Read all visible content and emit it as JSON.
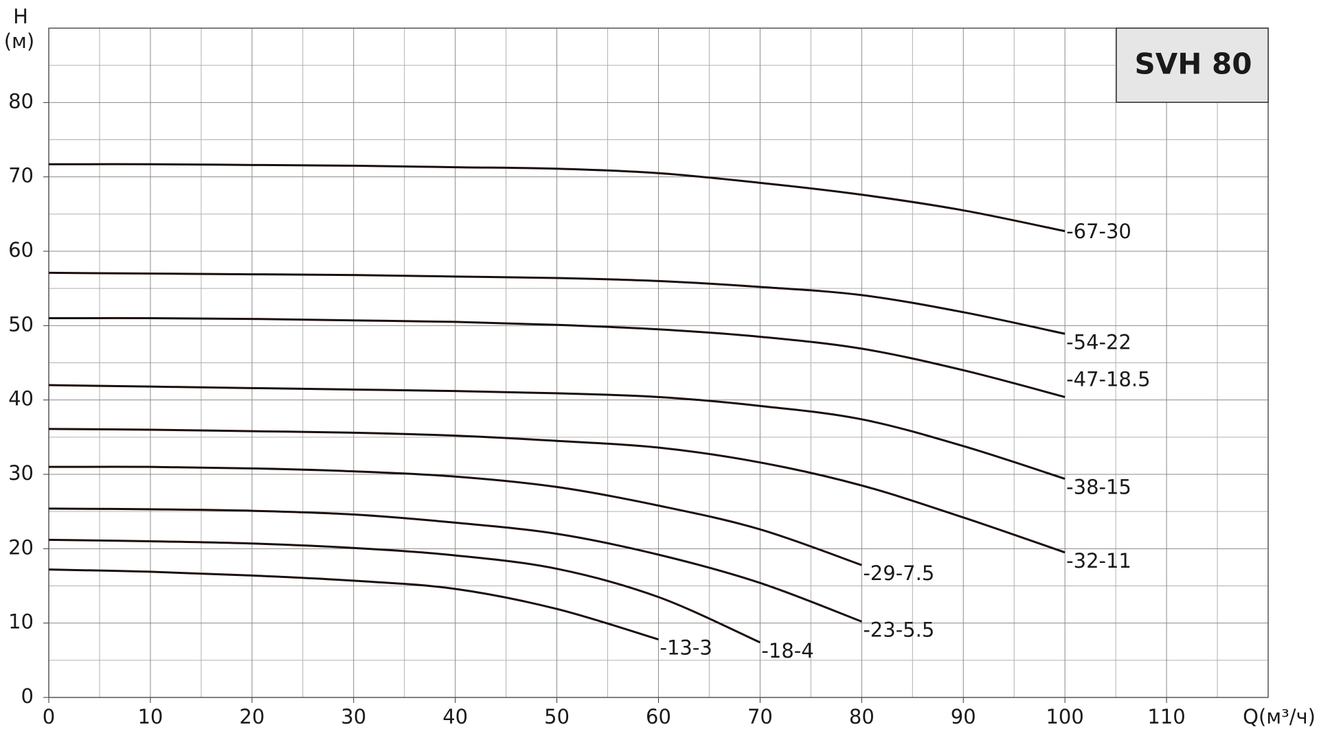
{
  "chart_data": {
    "type": "line",
    "title": "SVH 80",
    "y_label": "H",
    "y_unit": "(м)",
    "x_label": "Q(м³/ч)",
    "x": [
      0,
      10,
      20,
      30,
      40,
      50,
      60,
      70,
      80,
      90,
      100
    ],
    "xlim": [
      0,
      120
    ],
    "xticks": [
      0,
      10,
      20,
      30,
      40,
      50,
      60,
      70,
      80,
      90,
      100,
      110
    ],
    "xminorticks": [
      5,
      15,
      25,
      35,
      45,
      55,
      65,
      75,
      85,
      95,
      105,
      115
    ],
    "ylim": [
      0,
      90
    ],
    "yticks": [
      0,
      10,
      20,
      30,
      40,
      50,
      60,
      70,
      80
    ],
    "yminorticks": [
      5,
      15,
      25,
      35,
      45,
      55,
      65,
      75,
      85
    ],
    "grid": true,
    "color": "#1a0e0a",
    "series": [
      {
        "name": "-67-30",
        "values": [
          71.7,
          71.7,
          71.6,
          71.5,
          71.3,
          71.1,
          70.5,
          69.2,
          67.6,
          65.5,
          62.7
        ]
      },
      {
        "name": "-54-22",
        "values": [
          57.1,
          57.0,
          56.9,
          56.8,
          56.6,
          56.4,
          56.0,
          55.2,
          54.1,
          51.8,
          48.9
        ]
      },
      {
        "name": "-47-18.5",
        "values": [
          51.0,
          51.0,
          50.9,
          50.7,
          50.5,
          50.1,
          49.5,
          48.5,
          46.9,
          44.0,
          40.4
        ]
      },
      {
        "name": "-38-15",
        "values": [
          42.0,
          41.8,
          41.6,
          41.4,
          41.2,
          40.9,
          40.4,
          39.2,
          37.4,
          33.8,
          29.4
        ]
      },
      {
        "name": "-32-11",
        "values": [
          36.1,
          36.0,
          35.8,
          35.6,
          35.2,
          34.5,
          33.6,
          31.6,
          28.5,
          24.2,
          19.5
        ]
      },
      {
        "name": "-29-7.5",
        "values": [
          31.0,
          31.0,
          30.8,
          30.4,
          29.7,
          28.3,
          25.8,
          22.6,
          17.8,
          null,
          null
        ]
      },
      {
        "name": "-23-5.5",
        "values": [
          25.4,
          25.3,
          25.1,
          24.6,
          23.5,
          22.0,
          19.2,
          15.4,
          10.2,
          null,
          null
        ]
      },
      {
        "name": "-18-4",
        "values": [
          21.2,
          21.0,
          20.7,
          20.1,
          19.1,
          17.3,
          13.5,
          7.4,
          null,
          null,
          null
        ]
      },
      {
        "name": "-13-3",
        "values": [
          17.2,
          16.9,
          16.4,
          15.7,
          14.6,
          11.9,
          7.8,
          null,
          null,
          null,
          null
        ]
      }
    ]
  }
}
